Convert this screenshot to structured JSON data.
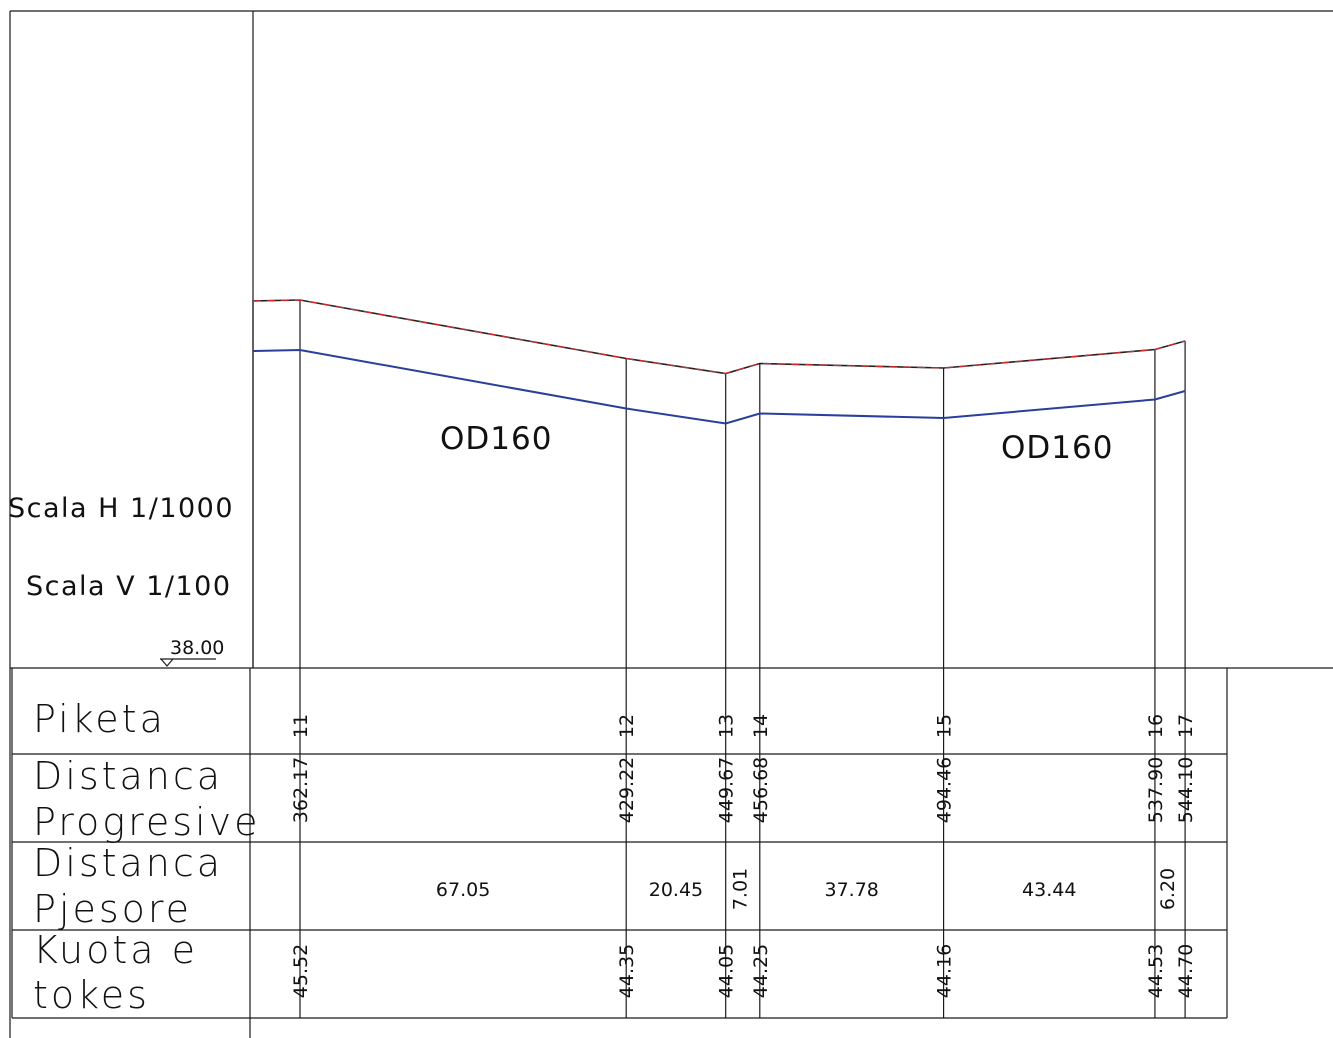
{
  "scale": {
    "horizontal": "Scala H 1/1000",
    "vertical": "Scala V 1/100",
    "datum": "38.00"
  },
  "pipe_labels": [
    "OD160",
    "OD160"
  ],
  "rows": {
    "piketa": "Piketa",
    "progresive_1": "Distanca",
    "progresive_2": "Progresive",
    "pjesore_1": "Distanca",
    "pjesore_2": "Pjesore",
    "kuota_1": "Kuota  e",
    "kuota_2": "tokes"
  },
  "stations": [
    {
      "piketa": "11",
      "progressive": "362.17",
      "kuota": "45.52"
    },
    {
      "piketa": "12",
      "progressive": "429.22",
      "kuota": "44.35"
    },
    {
      "piketa": "13",
      "progressive": "449.67",
      "kuota": "44.05"
    },
    {
      "piketa": "14",
      "progressive": "456.68",
      "kuota": "44.25"
    },
    {
      "piketa": "15",
      "progressive": "494.46",
      "kuota": "44.16"
    },
    {
      "piketa": "16",
      "progressive": "537.90",
      "kuota": "44.53"
    },
    {
      "piketa": "17",
      "progressive": "544.10",
      "kuota": "44.70"
    }
  ],
  "segments": [
    "67.05",
    "20.45",
    "7.01",
    "37.78",
    "43.44",
    "6.20"
  ],
  "colors": {
    "ground_line": "#d42a2a",
    "pipe_line": "#2a3f9a",
    "grid": "#1a1a1a"
  }
}
